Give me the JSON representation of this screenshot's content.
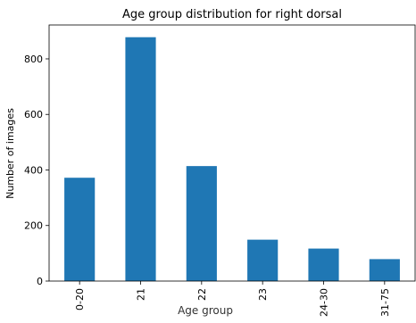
{
  "chart_data": {
    "type": "bar",
    "title": "Age group distribution for right dorsal",
    "xlabel": "Age group",
    "ylabel": "Number of images",
    "categories": [
      "0-20",
      "21",
      "22",
      "23",
      "24-30",
      "31-75"
    ],
    "values": [
      372,
      878,
      414,
      149,
      117,
      79
    ],
    "ylim": [
      0,
      922
    ],
    "yticks": [
      0,
      200,
      400,
      600,
      800
    ],
    "grid": false,
    "legend": "none",
    "bar_color": "#1f77b4",
    "x_tick_rotation": "vertical"
  }
}
